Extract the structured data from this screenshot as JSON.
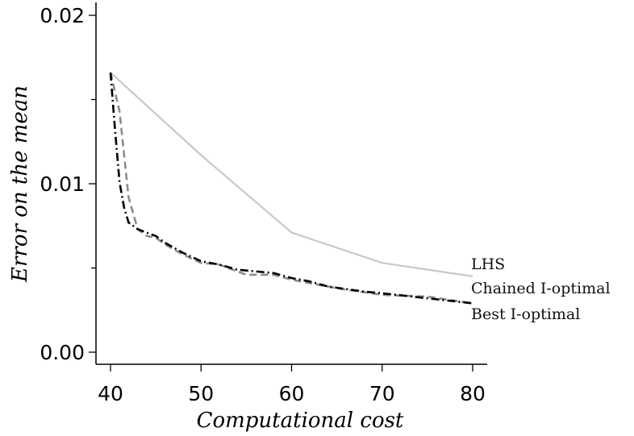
{
  "chart_data": {
    "type": "line",
    "xlabel": "Computational cost",
    "ylabel": "Error on the mean",
    "xlim": [
      40,
      80
    ],
    "ylim": [
      0,
      0.02
    ],
    "xticks": [
      40,
      50,
      60,
      70,
      80
    ],
    "xtick_labels": [
      "40",
      "50",
      "60",
      "70",
      "80"
    ],
    "yticks": [
      0.0,
      0.005,
      0.01,
      0.015,
      0.02
    ],
    "ytick_labels": [
      "0.00",
      "",
      "0.01",
      "",
      "0.02"
    ],
    "grid": false,
    "legend": "inline-right",
    "series": [
      {
        "name": "LHS",
        "color": "#c8c8c8",
        "style": "solid",
        "x": [
          40,
          50,
          60,
          70,
          80
        ],
        "y": [
          0.0166,
          0.0117,
          0.0071,
          0.0053,
          0.0045
        ]
      },
      {
        "name": "Chained I-optimal",
        "color": "#8c8c8c",
        "style": "dashed",
        "x": [
          40,
          41,
          42,
          43,
          44,
          45,
          46,
          48,
          50,
          52,
          55,
          58,
          60,
          65,
          70,
          75,
          80
        ],
        "y": [
          0.0166,
          0.0143,
          0.0092,
          0.0073,
          0.0069,
          0.0068,
          0.0064,
          0.0058,
          0.0053,
          0.0052,
          0.0046,
          0.0046,
          0.0043,
          0.0038,
          0.0034,
          0.0033,
          0.0029
        ]
      },
      {
        "name": "Best I-optimal",
        "color": "#000000",
        "style": "dashdot",
        "x": [
          40,
          40.5,
          41,
          41.5,
          42,
          43,
          44,
          45,
          46,
          48,
          50,
          52,
          54,
          58,
          60,
          62,
          64,
          68,
          70,
          75,
          80
        ],
        "y": [
          0.0166,
          0.0132,
          0.0101,
          0.0086,
          0.0077,
          0.0073,
          0.0071,
          0.0069,
          0.0065,
          0.0059,
          0.0054,
          0.0052,
          0.0049,
          0.0047,
          0.0044,
          0.0042,
          0.0039,
          0.0036,
          0.0035,
          0.0032,
          0.0029
        ]
      }
    ]
  }
}
